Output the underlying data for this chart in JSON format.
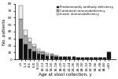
{
  "categories": [
    "<1",
    "1-4",
    "4-6",
    "6-8",
    "8-10",
    "10-12",
    "12-14",
    "14-16",
    "16-18",
    "18-20",
    "20-22",
    "22-24",
    "24-26",
    "26-28",
    "28-30",
    "30-32",
    "32-34",
    "34-36",
    "36-38",
    "38-40",
    ">40"
  ],
  "predominantly_antibody": [
    30,
    22,
    15,
    12,
    8,
    7,
    5,
    5,
    4,
    3,
    3,
    3,
    3,
    2,
    2,
    2,
    2,
    2,
    2,
    2,
    10
  ],
  "combined_immunodeficiency": [
    28,
    12,
    10,
    6,
    4,
    3,
    2,
    2,
    1,
    1,
    1,
    1,
    1,
    0,
    0,
    0,
    0,
    0,
    0,
    0,
    0
  ],
  "innate_immunodeficiency": [
    20,
    8,
    6,
    4,
    3,
    2,
    2,
    1,
    1,
    0,
    0,
    0,
    0,
    0,
    0,
    0,
    0,
    0,
    0,
    0,
    0
  ],
  "colors": [
    "#111111",
    "#aaaaaa",
    "#eeeeee"
  ],
  "edge_color": "#333333",
  "bg_color": "#ffffff",
  "ylabel": "No. patients",
  "xlabel": "Age at stool collection, y",
  "ylim": [
    0,
    80
  ],
  "yticks": [
    0,
    10,
    20,
    30,
    40,
    50,
    60,
    70,
    80
  ],
  "legend_labels": [
    "Predominantly antibody deficiency",
    "Combined immunodeficiency",
    "Innate immunodeficiency"
  ],
  "axis_fontsize": 4,
  "tick_fontsize": 3.2,
  "legend_fontsize": 2.8
}
